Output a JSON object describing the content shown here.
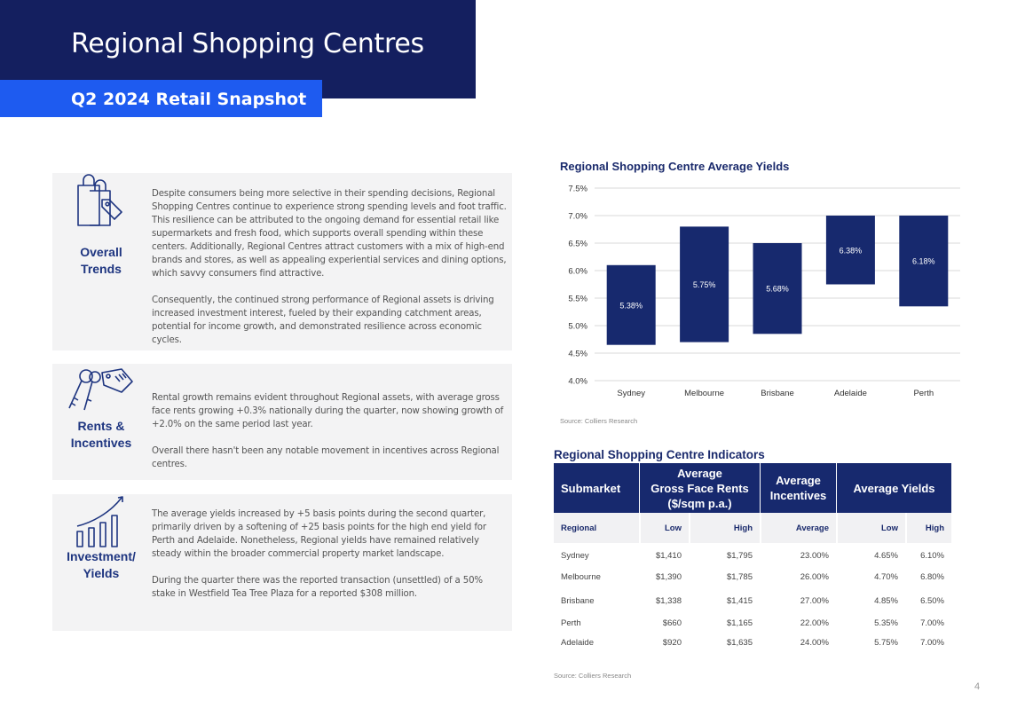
{
  "header": {
    "title": "Regional Shopping Centres",
    "subtitle": "Q2 2024 Retail Snapshot"
  },
  "colors": {
    "navy": "#141f5f",
    "blue": "#1e5bf0",
    "bar": "#17296e",
    "panel_bg": "#f3f3f4"
  },
  "panels": [
    {
      "icon": "shopping-bags-icon",
      "label_line1": "Overall",
      "label_line2": "Trends",
      "para1": "Despite consumers being more selective in their spending decisions, Regional Shopping Centres continue to experience strong spending levels and foot traffic. This resilience can be attributed to the ongoing demand for essential retail like supermarkets and fresh food, which supports overall spending within these centers. Additionally, Regional Centres attract customers with a mix of high-end brands and stores, as well as appealing experiential services and dining options, which savvy consumers find attractive.",
      "para2": "Consequently, the continued strong performance of Regional assets is driving increased investment interest, fueled by their expanding catchment areas, potential for income growth, and demonstrated resilience across economic cycles."
    },
    {
      "icon": "keys-icon",
      "label_line1": "Rents &",
      "label_line2": "Incentives",
      "para1": "Rental growth remains evident throughout Regional assets, with average gross face rents growing +0.3% nationally during the quarter, now showing growth of +2.0% on the same period last year.",
      "para2": "Overall there hasn't been any notable movement in incentives across Regional centres."
    },
    {
      "icon": "bar-growth-icon",
      "label_line1": "Investment/",
      "label_line2": "Yields",
      "para1": "The average yields increased by +5 basis points during the second quarter, primarily driven by a softening of +25 basis points for the high end yield for Perth and Adelaide. Nonetheless, Regional yields have remained relatively steady within the broader commercial property market landscape.",
      "para2": "During the quarter there was the reported transaction (unsettled) of a 50% stake in Westfield Tea Tree Plaza for a reported $308 million."
    }
  ],
  "chart_data": {
    "type": "bar",
    "title": "Regional Shopping Centre Average Yields",
    "categories": [
      "Sydney",
      "Melbourne",
      "Brisbane",
      "Adelaide",
      "Perth"
    ],
    "series": [
      {
        "low": [
          4.65,
          4.7,
          4.85,
          5.75,
          5.35
        ],
        "high": [
          6.1,
          6.8,
          6.5,
          7.0,
          7.0
        ]
      }
    ],
    "average_labels": [
      "5.38%",
      "5.75%",
      "5.68%",
      "6.38%",
      "6.18%"
    ],
    "ylim": [
      4.0,
      7.5
    ],
    "yticks": [
      "7.5%",
      "7.0%",
      "6.5%",
      "6.0%",
      "5.5%",
      "5.0%",
      "4.5%",
      "4.0%"
    ],
    "grid": true,
    "source": "Source: Colliers Research"
  },
  "table": {
    "title": "Regional Shopping Centre Indicators",
    "headers": {
      "submarket": "Submarket",
      "rents_line1": "Average",
      "rents_line2": "Gross Face Rents",
      "rents_line3": "($/sqm p.a.)",
      "incentives_line1": "Average",
      "incentives_line2": "Incentives",
      "yields": "Average Yields"
    },
    "subheaders": [
      "Regional",
      "Low",
      "High",
      "Average",
      "Low",
      "High"
    ],
    "rows": [
      [
        "Sydney",
        "$1,410",
        "$1,795",
        "23.00%",
        "4.65%",
        "6.10%"
      ],
      [
        "Melbourne",
        "$1,390",
        "$1,785",
        "26.00%",
        "4.70%",
        "6.80%"
      ],
      [
        "Brisbane",
        "$1,338",
        "$1,415",
        "27.00%",
        "4.85%",
        "6.50%"
      ],
      [
        "Perth",
        "$660",
        "$1,165",
        "22.00%",
        "5.35%",
        "7.00%"
      ],
      [
        "Adelaide",
        "$920",
        "$1,635",
        "24.00%",
        "5.75%",
        "7.00%"
      ]
    ],
    "source": "Source: Colliers Research"
  },
  "page_number": "4"
}
